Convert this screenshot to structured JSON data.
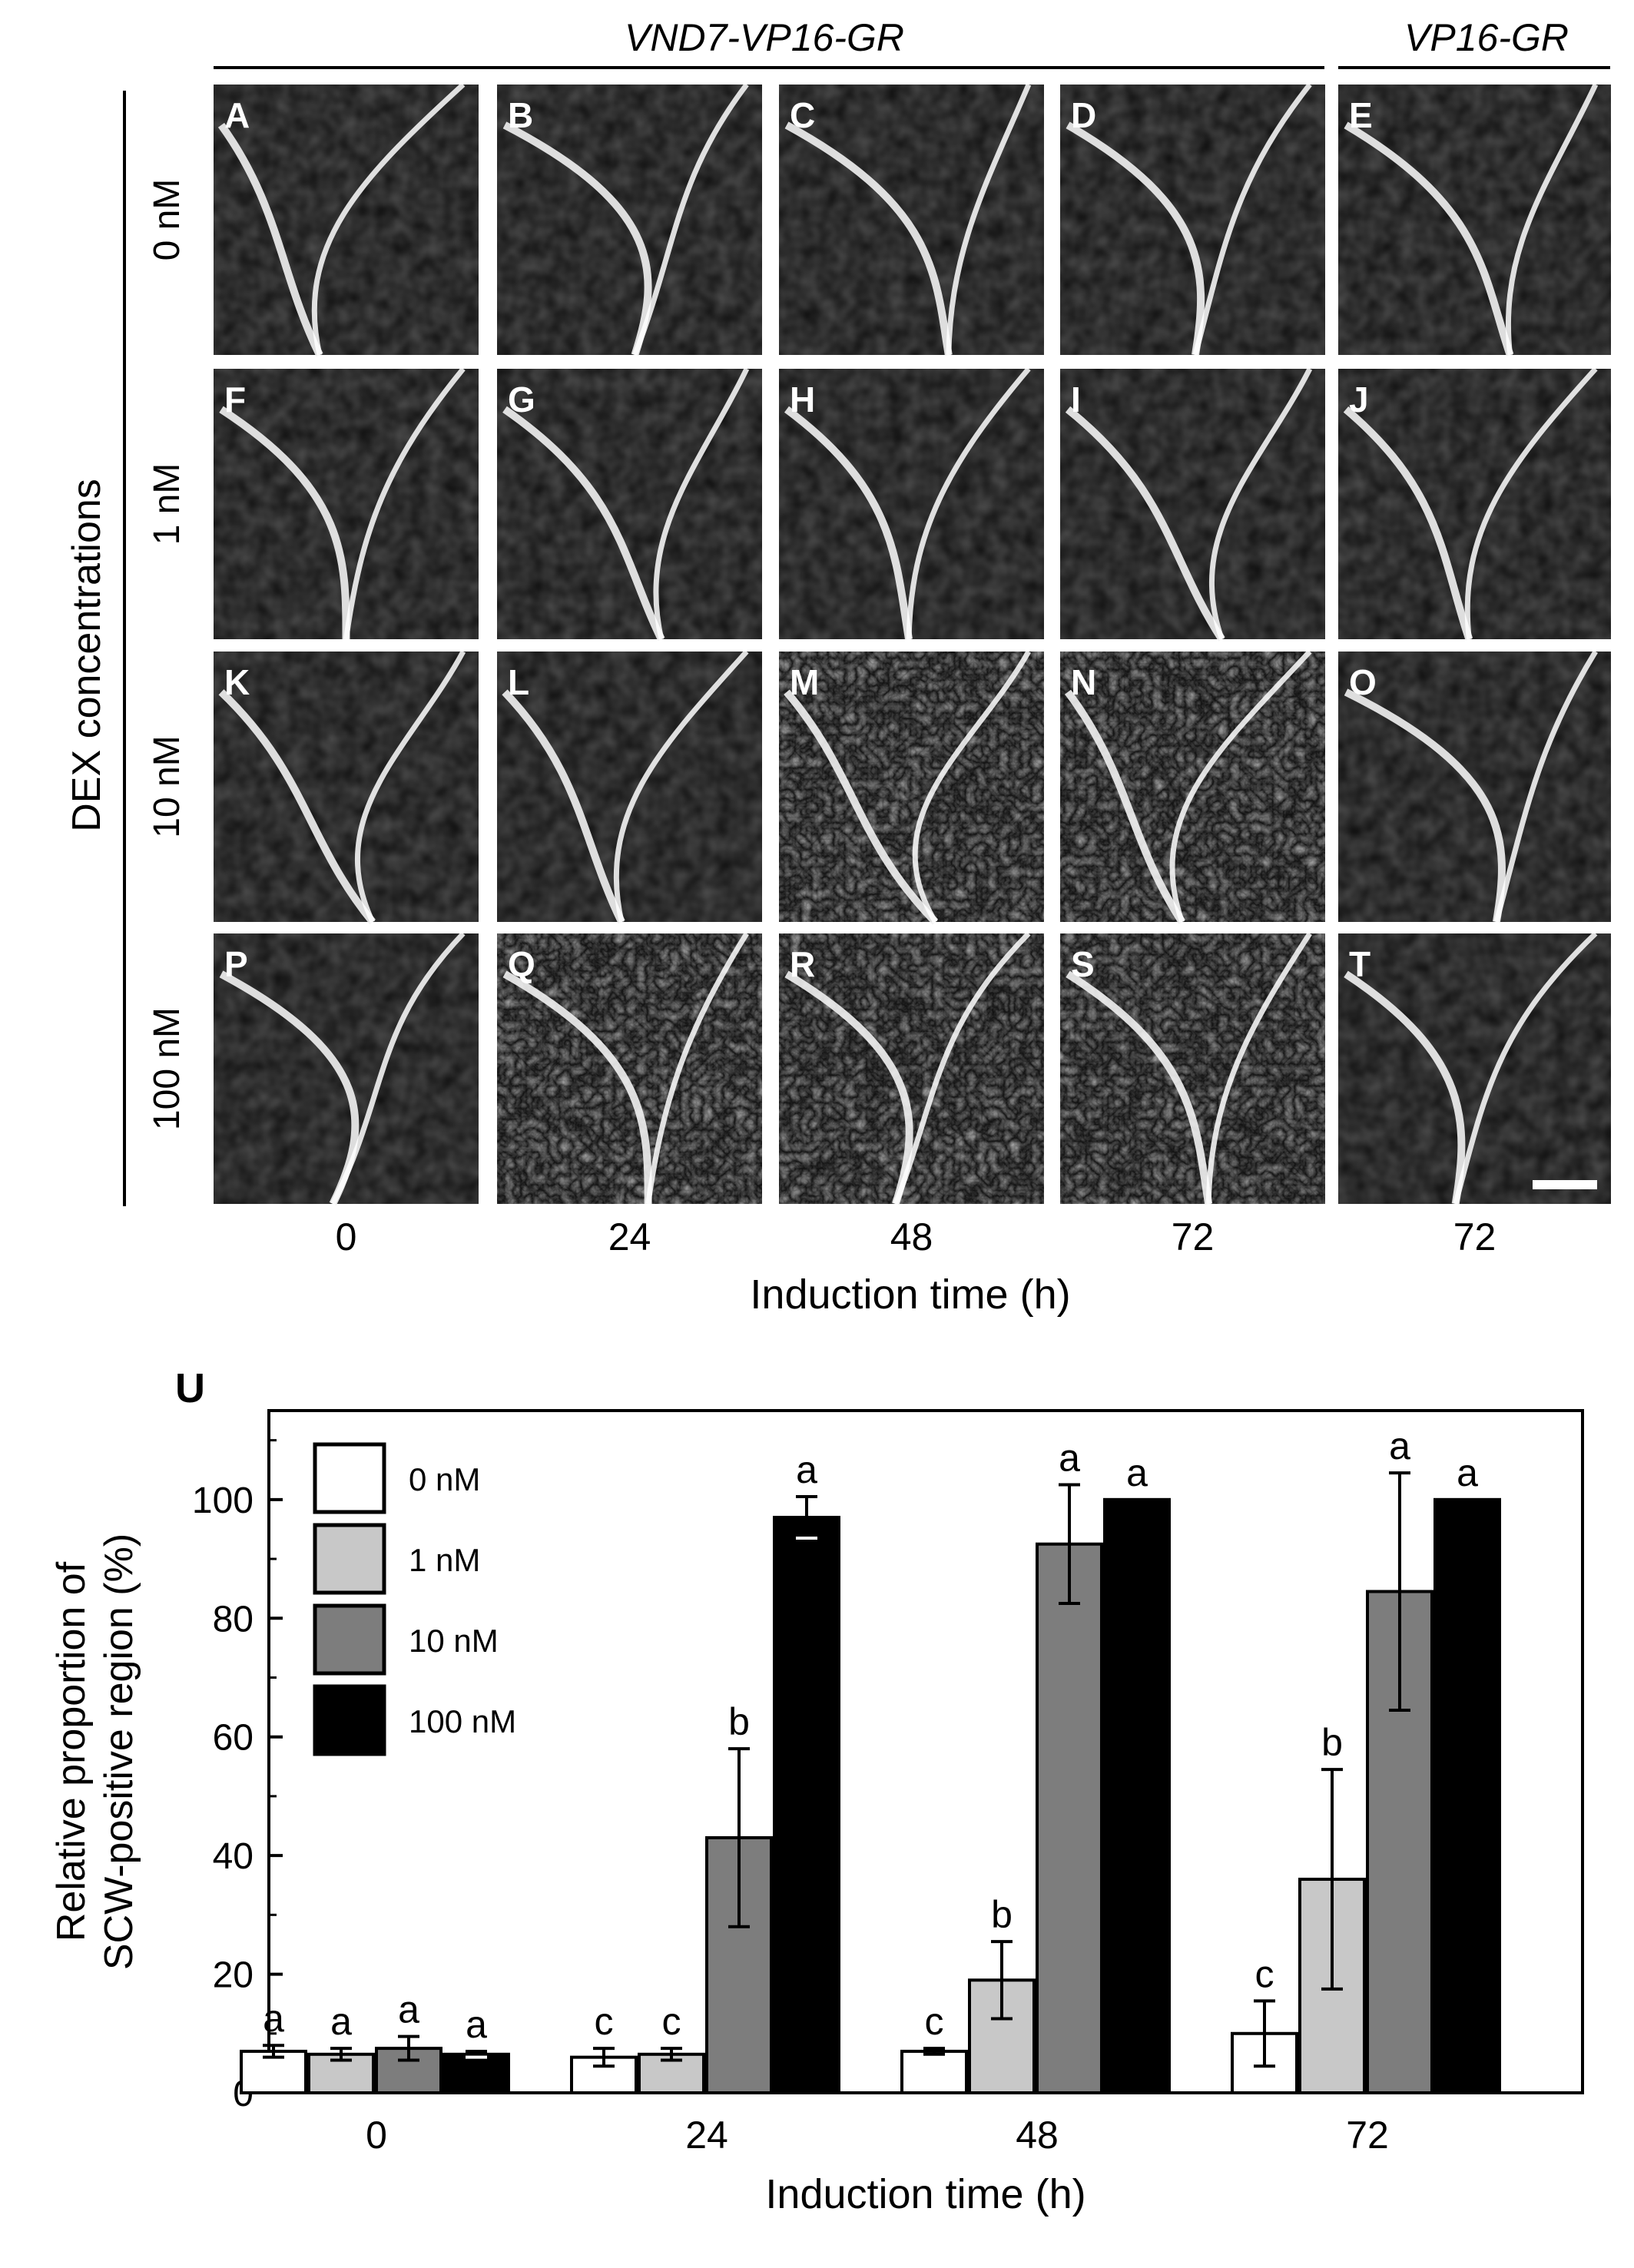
{
  "top_figure": {
    "group_labels": {
      "vnd7": "VND7-VP16-GR",
      "vp16": "VP16-GR"
    },
    "row_axis_label": "DEX concentrations",
    "row_labels": [
      "0 nM",
      "1 nM",
      "10 nM",
      "100 nM"
    ],
    "column_labels": [
      "0",
      "24",
      "48",
      "72",
      "72"
    ],
    "xlabel": "Induction time (h)",
    "panels": [
      [
        "A",
        "B",
        "C",
        "D",
        "E"
      ],
      [
        "F",
        "G",
        "H",
        "I",
        "J"
      ],
      [
        "K",
        "L",
        "M",
        "N",
        "O"
      ],
      [
        "P",
        "Q",
        "R",
        "S",
        "T"
      ]
    ]
  },
  "chart_data": {
    "type": "bar",
    "panel_label": "U",
    "categories": [
      "0",
      "24",
      "48",
      "72"
    ],
    "xlabel": "Induction time (h)",
    "ylabel": [
      "Relative proportion of",
      "SCW-positive region (%)"
    ],
    "ylim": [
      0,
      115
    ],
    "yticks": [
      0,
      20,
      40,
      60,
      80,
      100
    ],
    "legend_position": "top-left",
    "colors": [
      "#ffffff",
      "#c8c8c8",
      "#7d7d7d",
      "#000000"
    ],
    "series": [
      {
        "name": "0 nM",
        "values": [
          7,
          6,
          7,
          10
        ],
        "errors": [
          1,
          1.5,
          0.5,
          5.5
        ],
        "letters": [
          "a",
          "c",
          "c",
          "c"
        ]
      },
      {
        "name": "1 nM",
        "values": [
          6.5,
          6.5,
          19,
          36
        ],
        "errors": [
          1,
          1,
          6.5,
          18.5
        ],
        "letters": [
          "a",
          "c",
          "b",
          "b"
        ]
      },
      {
        "name": "10 nM",
        "values": [
          7.5,
          43,
          92.5,
          84.5
        ],
        "errors": [
          2,
          15,
          10,
          20
        ],
        "letters": [
          "a",
          "b",
          "a",
          "a"
        ]
      },
      {
        "name": "100 nM",
        "values": [
          6.5,
          97,
          100,
          100
        ],
        "errors": [
          0.5,
          3.5,
          0,
          0
        ],
        "letters": [
          "a",
          "a",
          "a",
          "a"
        ]
      }
    ]
  }
}
